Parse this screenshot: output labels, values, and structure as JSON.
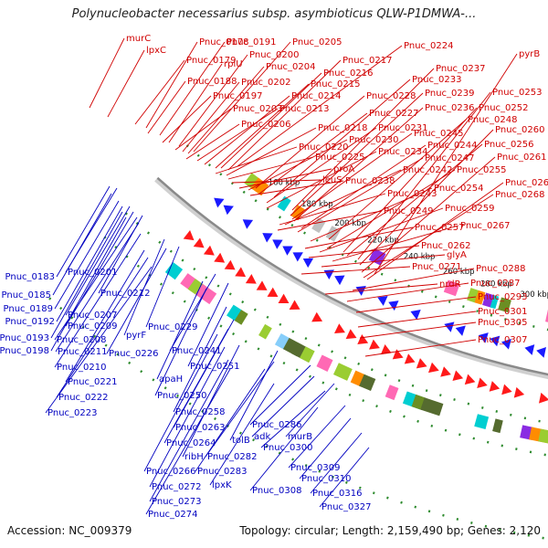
{
  "title": "Polynucleobacter necessarius subsp. asymbioticus QLW-P1DMWA-...",
  "footer": {
    "accession": "Accession: NC_009379",
    "summary": "Topology: circular; Length: 2,159,490 bp; Genes: 2,120"
  },
  "colors": {
    "forward_label": "#d00000",
    "reverse_label": "#0000c0",
    "backbone": "#8a8a8a",
    "feature_palette": [
      "#6b8e23",
      "#9acd32",
      "#c0c0c0",
      "#ff69b4",
      "#00ced1",
      "#ff8c00",
      "#8a2be2",
      "#87cefa",
      "#556b2f",
      "#dda0dd"
    ]
  },
  "ticks": [
    "160 kbp",
    "180 kbp",
    "200 kbp",
    "220 kbp",
    "240 kbp",
    "260 kbp",
    "280 kbp",
    "300 kbp",
    "320 kbp"
  ],
  "forward_labels": [
    "murC",
    "lpxC",
    "Pnuc_0178",
    "Pnuc_0191",
    "Pnuc_0205",
    "Pnuc_0224",
    "pyrB",
    "Pnuc_0179",
    "rplU",
    "Pnuc_0200",
    "Pnuc_0217",
    "Pnuc_0237",
    "Pnuc_0204",
    "Pnuc_0216",
    "Pnuc_0233",
    "Pnuc_0188",
    "Pnuc_0202",
    "Pnuc_0215",
    "Pnuc_0253",
    "Pnuc_0197",
    "Pnuc_0214",
    "Pnuc_0228",
    "Pnuc_0239",
    "Pnuc_0203",
    "Pnuc_0213",
    "Pnuc_0236",
    "Pnuc_0252",
    "Pnuc_0227",
    "Pnuc_0248",
    "Pnuc_0206",
    "Pnuc_0218",
    "Pnuc_0231",
    "Pnuc_0245",
    "Pnuc_0260",
    "Pnuc_0230",
    "Pnuc_0244",
    "Pnuc_0256",
    "Pnuc_0220",
    "Pnuc_0234",
    "Pnuc_0247",
    "Pnuc_0261",
    "Pnuc_0225",
    "proA",
    "Pnuc_0242",
    "Pnuc_0255",
    "leuS",
    "Pnuc_0238",
    "Pnuc_0254",
    "Pnuc_0269",
    "Pnuc_0243",
    "Pnuc_0268",
    "Pnuc_0249",
    "Pnuc_0259",
    "Pnuc_0257",
    "Pnuc_0267",
    "Pnuc_0262",
    "glyA",
    "Pnuc_0271",
    "Pnuc_0288",
    "nrdR",
    "Pnuc_0287",
    "Pnuc_0293",
    "Pnuc_0301",
    "Pnuc_0305",
    "Pnuc_0307"
  ],
  "reverse_labels": [
    "Pnuc_0183",
    "Pnuc_0201",
    "Pnuc_0185",
    "Pnuc_0212",
    "Pnuc_0189",
    "Pnuc_0207",
    "Pnuc_0192",
    "Pnuc_0209",
    "Pnuc_0193",
    "Pnuc_0208",
    "pyrF",
    "Pnuc_0229",
    "Pnuc_0198",
    "Pnuc_0211",
    "Pnuc_0226",
    "Pnuc_0210",
    "Pnuc_0241",
    "Pnuc_0251",
    "Pnuc_0221",
    "apaH",
    "Pnuc_0222",
    "Pnuc_0250",
    "Pnuc_0223",
    "Pnuc_0258",
    "Pnuc_0286",
    "Pnuc_0263",
    "adk",
    "murB",
    "tolB",
    "Pnuc_0264",
    "Pnuc_0300",
    "ribH",
    "Pnuc_0282",
    "Pnuc_0266",
    "Pnuc_0283",
    "Pnuc_0309",
    "Pnuc_0310",
    "lpxK",
    "Pnuc_0272",
    "Pnuc_0308",
    "Pnuc_0316",
    "Pnuc_0273",
    "Pnuc_0327",
    "Pnuc_0274"
  ]
}
